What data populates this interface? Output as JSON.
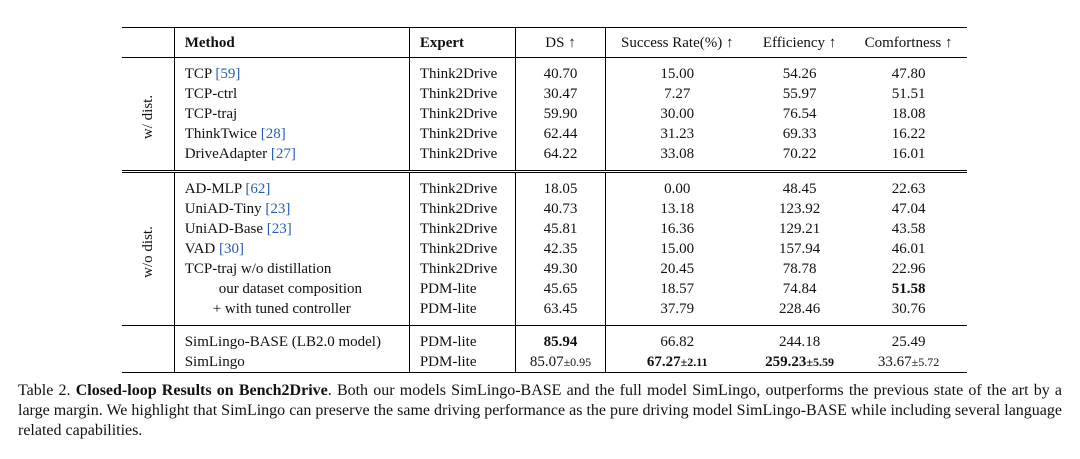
{
  "table": {
    "headers": {
      "method": "Method",
      "expert": "Expert",
      "ds": "DS ↑",
      "success": "Success Rate(%) ↑",
      "efficiency": "Efficiency ↑",
      "comfort": "Comfortness ↑"
    },
    "group1_label": "w/ dist.",
    "group2_label": "w/o dist.",
    "rows": [
      {
        "method": "TCP ",
        "cite": "[59]",
        "expert": "Think2Drive",
        "ds": "40.70",
        "sr": "15.00",
        "eff": "54.26",
        "comf": "47.80"
      },
      {
        "method": "TCP-ctrl",
        "expert": "Think2Drive",
        "ds": "30.47",
        "sr": "7.27",
        "eff": "55.97",
        "comf": "51.51"
      },
      {
        "method": "TCP-traj",
        "expert": "Think2Drive",
        "ds": "59.90",
        "sr": "30.00",
        "eff": "76.54",
        "comf": "18.08"
      },
      {
        "method": "ThinkTwice ",
        "cite": "[28]",
        "expert": "Think2Drive",
        "ds": "62.44",
        "sr": "31.23",
        "eff": "69.33",
        "comf": "16.22"
      },
      {
        "method": "DriveAdapter ",
        "cite": "[27]",
        "expert": "Think2Drive",
        "ds": "64.22",
        "sr": "33.08",
        "eff": "70.22",
        "comf": "16.01"
      },
      {
        "method": "AD-MLP ",
        "cite": "[62]",
        "expert": "Think2Drive",
        "ds": "18.05",
        "sr": "0.00",
        "eff": "48.45",
        "comf": "22.63"
      },
      {
        "method": "UniAD-Tiny ",
        "cite": "[23]",
        "expert": "Think2Drive",
        "ds": "40.73",
        "sr": "13.18",
        "eff": "123.92",
        "comf": "47.04"
      },
      {
        "method": "UniAD-Base ",
        "cite": "[23]",
        "expert": "Think2Drive",
        "ds": "45.81",
        "sr": "16.36",
        "eff": "129.21",
        "comf": "43.58"
      },
      {
        "method": "VAD ",
        "cite": "[30]",
        "expert": "Think2Drive",
        "ds": "42.35",
        "sr": "15.00",
        "eff": "157.94",
        "comf": "46.01"
      },
      {
        "method": "TCP-traj w/o distillation",
        "expert": "Think2Drive",
        "ds": "49.30",
        "sr": "20.45",
        "eff": "78.78",
        "comf": "22.96"
      },
      {
        "method": "our dataset composition",
        "expert": "PDM-lite",
        "ds": "45.65",
        "sr": "18.57",
        "eff": "74.84",
        "comf": "51.58"
      },
      {
        "method": "+ with tuned controller",
        "expert": "PDM-lite",
        "ds": "63.45",
        "sr": "37.79",
        "eff": "228.46",
        "comf": "30.76"
      },
      {
        "method": "SimLingo-BASE (LB2.0 model)",
        "expert": "PDM-lite",
        "ds": "85.94",
        "sr": "66.82",
        "eff": "244.18",
        "comf": "25.49"
      },
      {
        "method": "SimLingo",
        "expert": "PDM-lite",
        "ds": "85.07",
        "ds_pm": "±0.95",
        "sr": "67.27",
        "sr_pm": "±2.11",
        "eff": "259.23",
        "eff_pm": "±5.59",
        "comf": "33.67",
        "comf_pm": "±5.72"
      }
    ]
  },
  "caption": {
    "prefix": "Table 2. ",
    "title": "Closed-loop Results on Bench2Drive",
    "body": ". Both our models SimLingo-BASE and the full model SimLingo, outperforms the previous state of the art by a large margin. We highlight that SimLingo can preserve the same driving performance as the pure driving model SimLingo-BASE while including several language related capabilities."
  }
}
